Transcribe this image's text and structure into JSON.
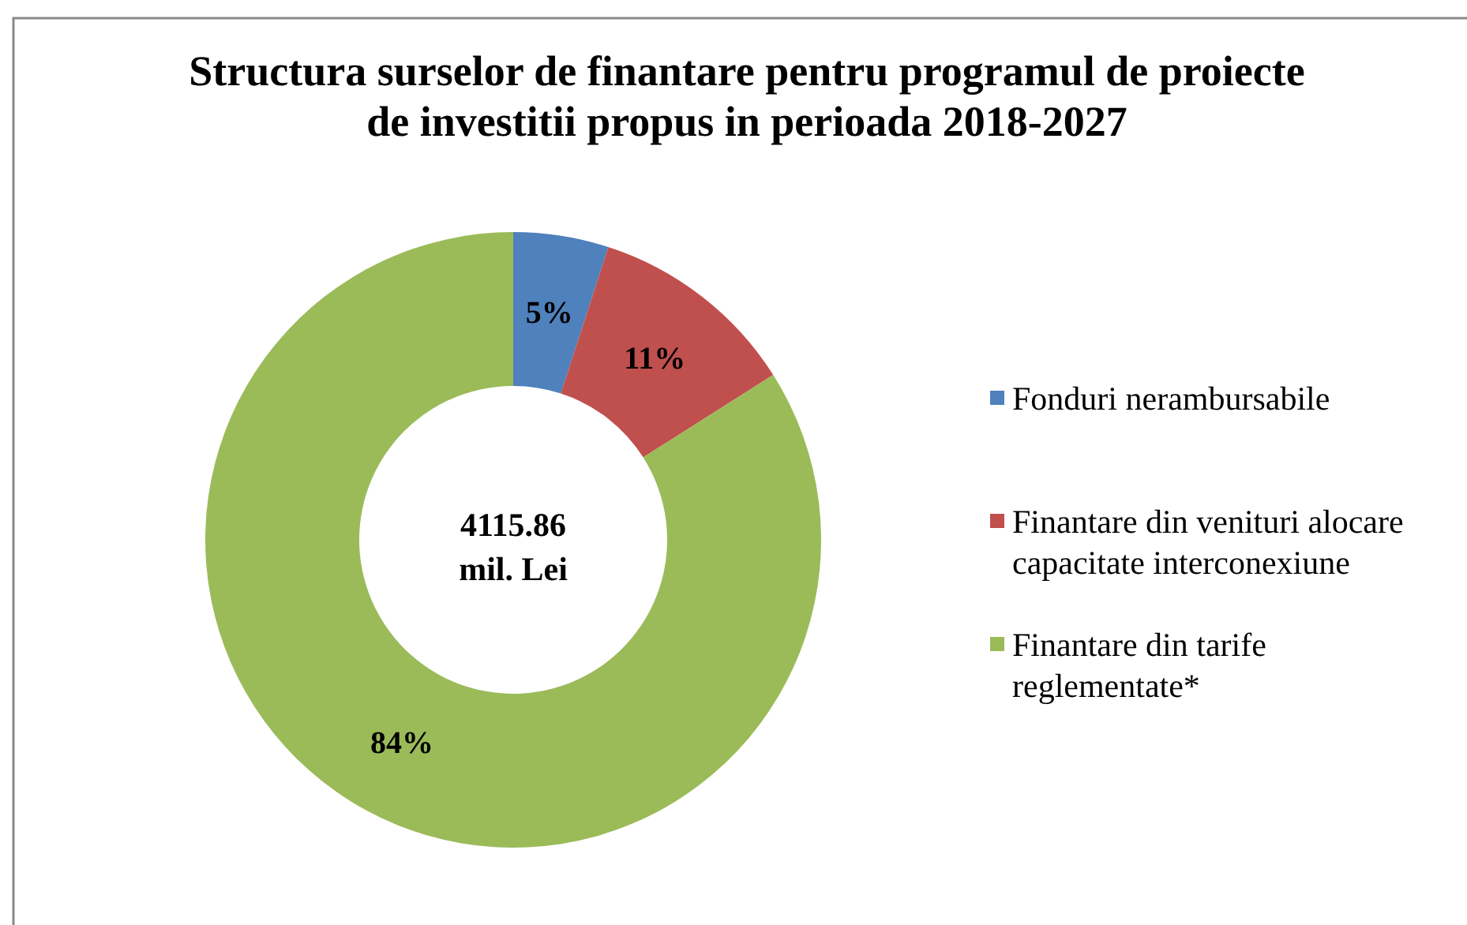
{
  "chart_data": {
    "type": "donut",
    "title": "Structura surselor de finantare pentru programul de proiecte de investitii propus in perioada 2018-2027",
    "categories": [
      "Fonduri nerambursabile",
      "Finantare din venituri alocare capacitate interconexiune",
      "Finantare din tarife reglementate*"
    ],
    "values": [
      5,
      11,
      84
    ],
    "colors": [
      "#4f81bd",
      "#c0504d",
      "#9bbb59"
    ],
    "value_labels": [
      "5%",
      "11%",
      "84%"
    ],
    "annotations": [
      "4115.86 mil. Lei"
    ],
    "legend": "right"
  }
}
